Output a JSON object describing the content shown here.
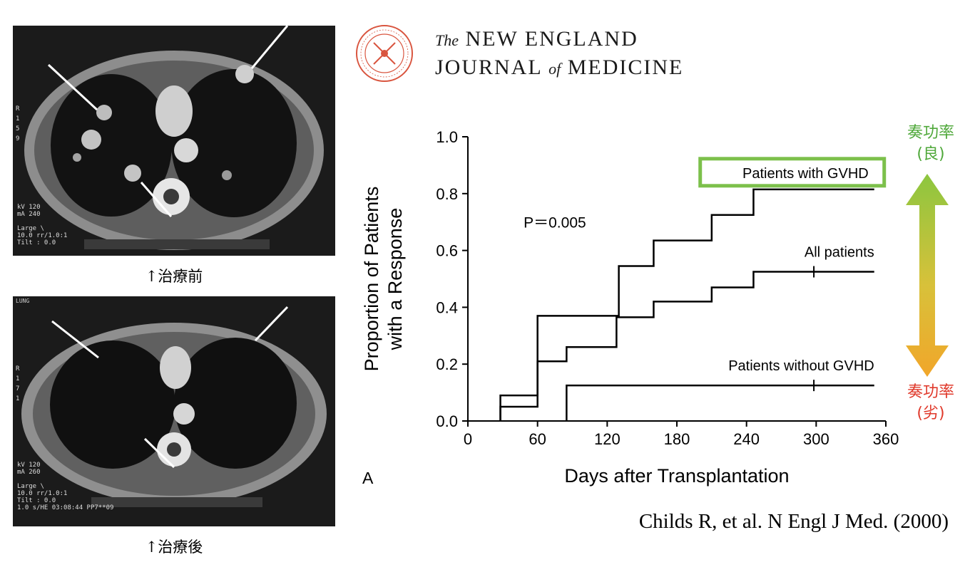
{
  "ct_scans": {
    "before": {
      "caption": "↑治療前",
      "overlay_lines": [
        "kV 120",
        "mA 240",
        "Large \\",
        "10.0 rr/1.0:1",
        "Tilt : 0.0"
      ],
      "side_letters": [
        "R",
        "1",
        "5",
        "9"
      ]
    },
    "after": {
      "caption": "↑治療後",
      "overlay_lines": [
        "kV 120",
        "mA 260",
        "Large \\",
        "10.0 rr/1.0:1",
        "Tilt : 0.0",
        "1.0 s/HE 03:08:44 PP7**09"
      ],
      "side_letters": [
        "R",
        "1",
        "7",
        "1"
      ],
      "top_text": "LUNG"
    }
  },
  "journal": {
    "line1_the": "The",
    "line1_rest": "NEW ENGLAND",
    "line2_a": "JOURNAL",
    "line2_of": "of",
    "line2_b": "MEDICINE"
  },
  "citation": "Childs R, et al. N Engl J Med. (2000)",
  "response_labels": {
    "good": [
      "奏功率",
      "(良)"
    ],
    "bad": [
      "奏功率",
      "(劣)"
    ],
    "good_color": "#4fa83a",
    "bad_color": "#e0392b"
  },
  "chart_data": {
    "type": "line",
    "step": true,
    "xlabel": "Days after Transplantation",
    "ylabel_lines": [
      "Proportion of Patients",
      "with a Response"
    ],
    "xlim": [
      0,
      360
    ],
    "ylim": [
      0,
      1.0
    ],
    "x_ticks": [
      0,
      60,
      120,
      180,
      240,
      300,
      360
    ],
    "y_ticks": [
      0.0,
      0.2,
      0.4,
      0.6,
      0.8,
      1.0
    ],
    "y_tick_labels": [
      "0.0",
      "0.2",
      "0.4",
      "0.6",
      "0.8",
      "1.0"
    ],
    "panel_label": "A",
    "annotation": "P＝0.005",
    "highlight_color": "#7cc04b",
    "series": [
      {
        "name": "Patients with GVHD",
        "highlight": true,
        "x": [
          28,
          60,
          130,
          160,
          210,
          246,
          350
        ],
        "y": [
          0.09,
          0.37,
          0.545,
          0.635,
          0.725,
          0.815,
          0.815
        ]
      },
      {
        "name": "All patients",
        "x": [
          28,
          60,
          85,
          128,
          160,
          210,
          246,
          350
        ],
        "y": [
          0.05,
          0.21,
          0.26,
          0.365,
          0.42,
          0.47,
          0.525,
          0.525
        ],
        "censor_x": [
          298
        ]
      },
      {
        "name": "Patients without GVHD",
        "x": [
          85,
          350
        ],
        "y": [
          0.125,
          0.125
        ],
        "censor_x": [
          298
        ]
      }
    ]
  }
}
